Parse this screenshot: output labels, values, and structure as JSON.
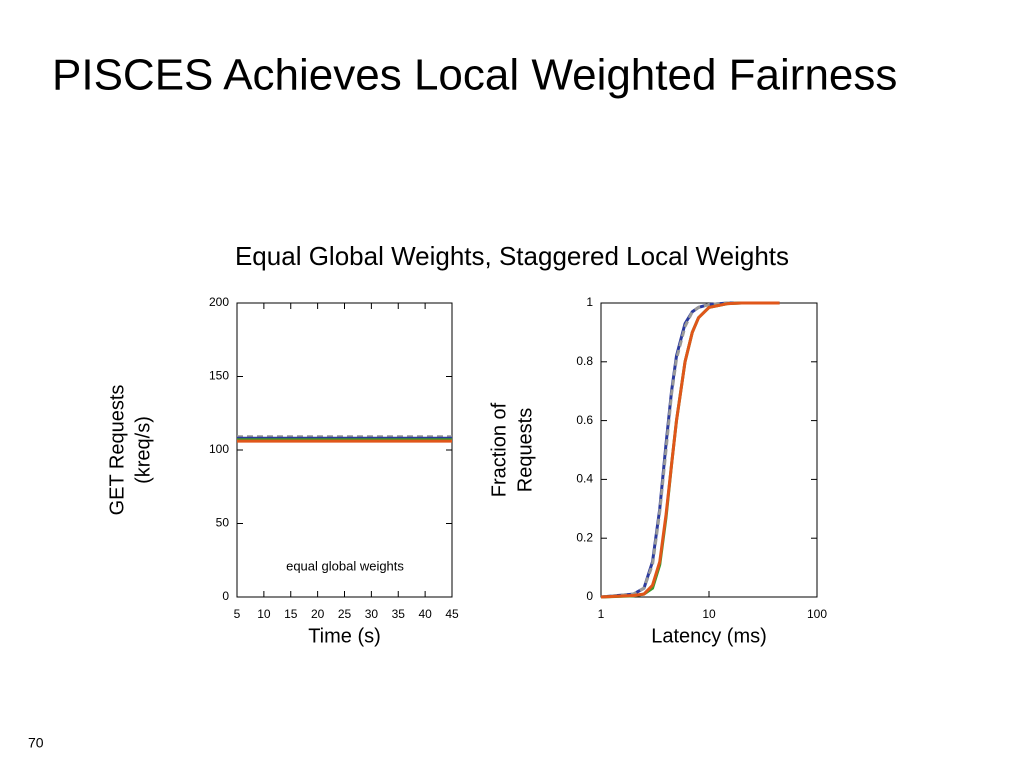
{
  "title": "PISCES Achieves Local Weighted Fairness",
  "subtitle": "Equal Global Weights, Staggered Local Weights",
  "page_number": "70",
  "chart_data": [
    {
      "type": "line",
      "xlabel": "Time (s)",
      "ylabel": [
        "GET Requests",
        "(kreq/s)"
      ],
      "annotation": "equal global weights",
      "x": [
        5,
        10,
        15,
        20,
        25,
        30,
        35,
        40,
        45
      ],
      "xlim": [
        5,
        45
      ],
      "xticks": [
        5,
        10,
        15,
        20,
        25,
        30,
        35,
        40,
        45
      ],
      "ylim": [
        0,
        200
      ],
      "yticks": [
        0,
        50,
        100,
        150,
        200
      ],
      "series": [
        {
          "color": "#999999",
          "linestyle": "dashed",
          "values": [
            109,
            109,
            109,
            109,
            109,
            109,
            109,
            109,
            109
          ]
        },
        {
          "color": "#2b3a9e",
          "linestyle": "solid",
          "values": [
            108,
            108,
            108,
            108,
            108,
            108,
            108,
            108,
            108
          ]
        },
        {
          "color": "#3a9a2a",
          "linestyle": "solid",
          "values": [
            107,
            107,
            107,
            107,
            107,
            107,
            107,
            107,
            107
          ]
        },
        {
          "color": "#e0561a",
          "linestyle": "solid",
          "values": [
            106,
            106,
            106,
            106,
            106,
            106,
            106,
            106,
            106
          ]
        }
      ]
    },
    {
      "type": "line",
      "xlabel": "Latency (ms)",
      "ylabel": [
        "Fraction of",
        "Requests"
      ],
      "xscale": "log",
      "x": [
        1,
        2,
        2.5,
        3,
        3.5,
        4,
        4.5,
        5,
        6,
        7,
        8,
        10,
        15,
        20,
        30,
        45
      ],
      "xlim": [
        1,
        100
      ],
      "xticks": [
        1,
        10,
        100
      ],
      "ylim": [
        0,
        1
      ],
      "yticks": [
        0,
        0.2,
        0.4,
        0.6,
        0.8,
        1
      ],
      "series": [
        {
          "color": "#2b3a9e",
          "linestyle": "solid",
          "values": [
            0,
            0.01,
            0.03,
            0.12,
            0.3,
            0.52,
            0.7,
            0.82,
            0.93,
            0.97,
            0.985,
            0.995,
            1,
            1,
            1,
            1
          ]
        },
        {
          "color": "#999999",
          "linestyle": "dashed",
          "values": [
            0,
            0.01,
            0.03,
            0.11,
            0.29,
            0.5,
            0.69,
            0.81,
            0.92,
            0.97,
            0.985,
            0.995,
            1,
            1,
            1,
            1
          ]
        },
        {
          "color": "#3a9a2a",
          "linestyle": "solid",
          "values": [
            0,
            0.004,
            0.01,
            0.03,
            0.11,
            0.27,
            0.45,
            0.6,
            0.8,
            0.9,
            0.95,
            0.985,
            0.998,
            1,
            1,
            1
          ]
        },
        {
          "color": "#e0561a",
          "linestyle": "solid",
          "values": [
            0,
            0.005,
            0.01,
            0.04,
            0.12,
            0.28,
            0.45,
            0.6,
            0.8,
            0.9,
            0.95,
            0.985,
            0.998,
            1,
            1,
            1
          ]
        }
      ]
    }
  ]
}
